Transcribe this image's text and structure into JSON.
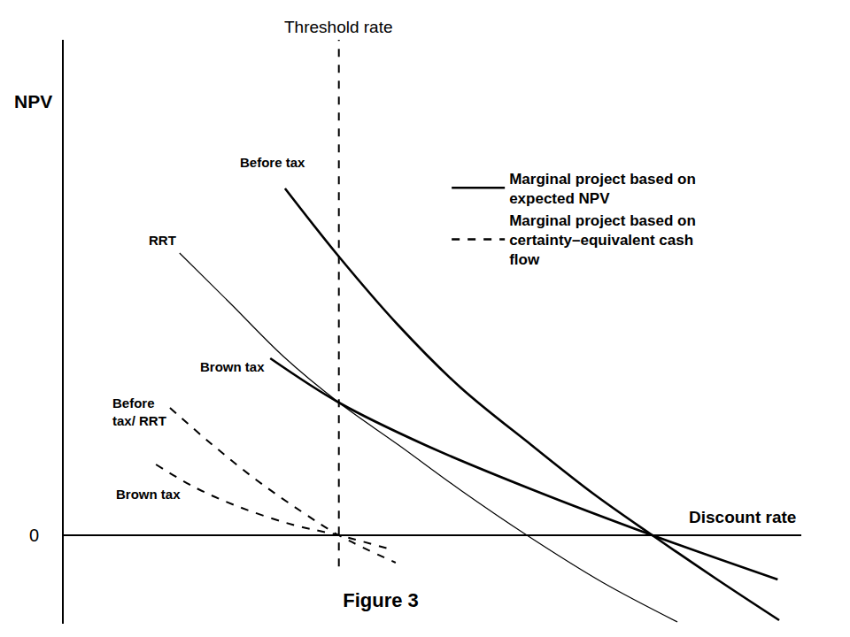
{
  "chart_data": {
    "type": "line",
    "title": "Figure 3",
    "x_label": "Discount rate",
    "y_label": "NPV",
    "xlim": [
      0,
      10
    ],
    "ylim": [
      -2,
      11.2
    ],
    "xticks": [],
    "yticks": [
      0
    ],
    "tick_labels": "y",
    "grid": false,
    "legend": "top right",
    "vlines": [
      {
        "x": 3.73,
        "label": "Threshold rate",
        "line_style": "dashed"
      }
    ],
    "legend_entries": [
      {
        "label": "Marginal project based on\nexpected NPV",
        "line_style": "solid"
      },
      {
        "label": "Marginal project based on\ncertainty–equivalent cash\nflow",
        "line_style": "dashed"
      }
    ],
    "series": [
      {
        "name": "Before tax",
        "color": "#000000",
        "line_style": "solid",
        "x": [
          3.0,
          3.73,
          4.54,
          5.38,
          6.34,
          7.18,
          7.98,
          8.86,
          9.7
        ],
        "values": [
          7.84,
          6.3,
          4.74,
          3.34,
          2.04,
          0.94,
          0,
          -1.0,
          -1.92
        ]
      },
      {
        "name": "RRT",
        "color": "#000000",
        "line_style": "solid",
        "x": [
          1.57,
          2.26,
          2.98,
          3.73,
          4.54,
          5.38,
          6.28,
          7.3,
          8.32
        ],
        "values": [
          6.38,
          5.24,
          4.04,
          3.0,
          2.04,
          1.02,
          0,
          -1.06,
          -1.96
        ]
      },
      {
        "name": "Brown tax",
        "color": "#000000",
        "line_style": "solid",
        "x": [
          2.8,
          3.73,
          4.9,
          6.34,
          7.98,
          9.68
        ],
        "values": [
          4.0,
          3.0,
          2.04,
          1.04,
          0,
          -1.0
        ]
      },
      {
        "name": "Before\ntax/ RRT",
        "color": "#000000",
        "line_style": "dashed",
        "x": [
          1.44,
          2.02,
          2.62,
          3.22,
          3.73,
          4.5
        ],
        "values": [
          2.88,
          2.04,
          1.24,
          0.54,
          0,
          -0.62
        ]
      },
      {
        "name": "Brown tax",
        "color": "#000000",
        "line_style": "dashed",
        "x": [
          1.25,
          1.78,
          2.38,
          3.1,
          3.73,
          4.48
        ],
        "values": [
          1.6,
          1.08,
          0.64,
          0.24,
          0,
          -0.34
        ]
      }
    ]
  }
}
